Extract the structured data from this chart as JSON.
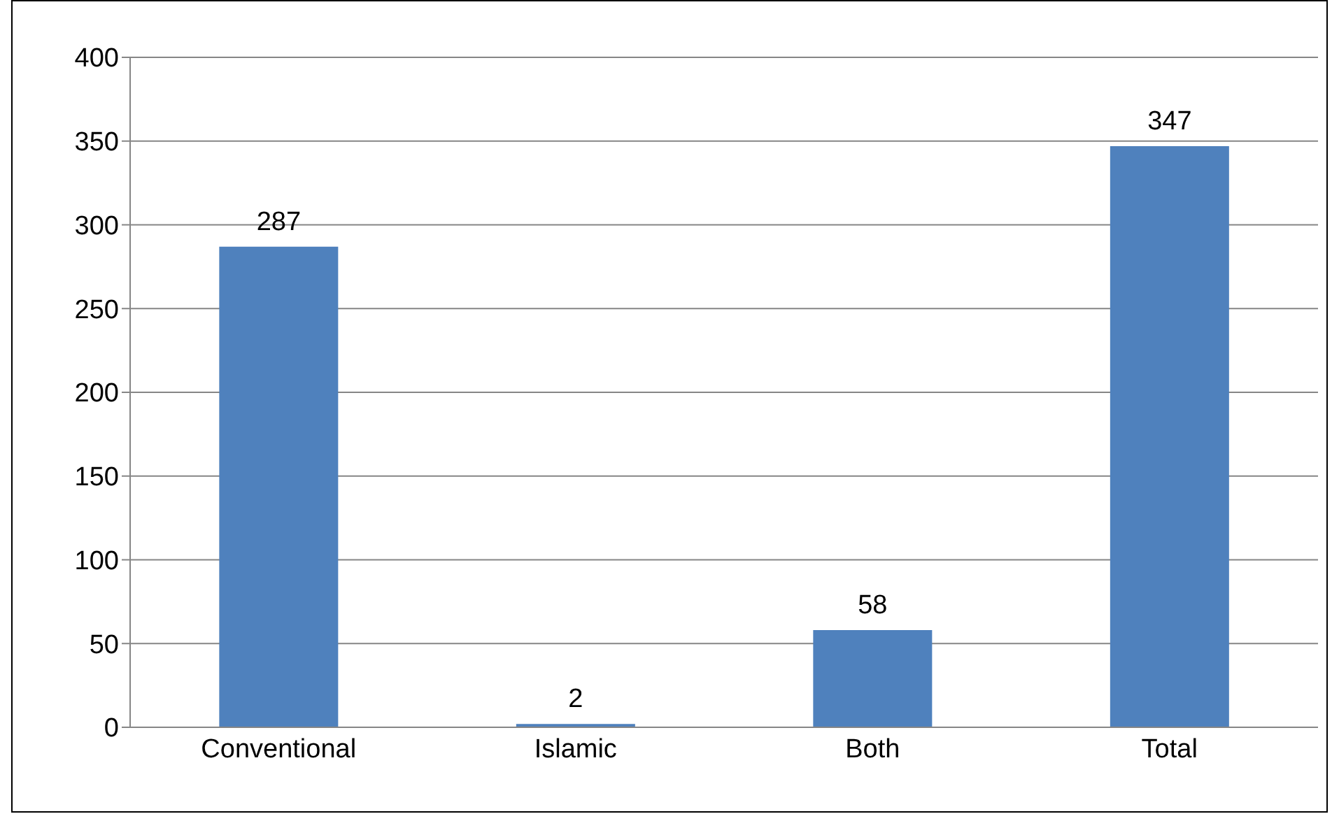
{
  "chart_data": {
    "type": "bar",
    "categories": [
      "Conventional",
      "Islamic",
      "Both",
      "Total"
    ],
    "values": [
      287,
      2,
      58,
      347
    ],
    "color": "#4f81bd",
    "ylim": [
      0,
      400
    ],
    "yticks": [
      0,
      50,
      100,
      150,
      200,
      250,
      300,
      350,
      400
    ],
    "grid": "y",
    "data_labels": true
  }
}
